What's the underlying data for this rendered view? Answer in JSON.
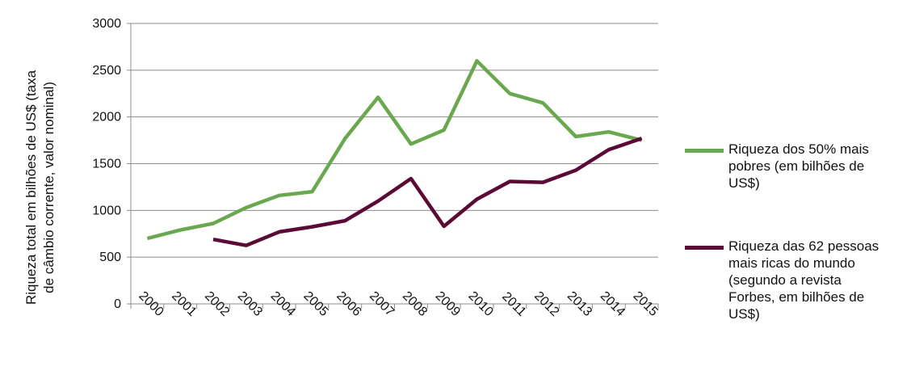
{
  "chart_data": {
    "type": "line",
    "title": "",
    "xlabel": "",
    "ylabel_lines": [
      "Riqueza total em bilhões de US$ (taxa",
      "de câmbio corrente, valor nominal)"
    ],
    "ylim": [
      0,
      3000
    ],
    "yticks": [
      0,
      500,
      1000,
      1500,
      2000,
      2500,
      3000
    ],
    "categories": [
      "2000",
      "2001",
      "2002",
      "2003",
      "2004",
      "2005",
      "2006",
      "2007",
      "2008",
      "2009",
      "2010",
      "2011",
      "2012",
      "2013",
      "2014",
      "2015"
    ],
    "grid": true,
    "legend_position": "right",
    "series": [
      {
        "name_lines": [
          "Riqueza dos 50% mais",
          "pobres (em bilhões de",
          "US$)"
        ],
        "color": "#6aa84f",
        "values": [
          700,
          790,
          860,
          1030,
          1160,
          1200,
          1770,
          2210,
          1710,
          1860,
          2600,
          2250,
          2150,
          1790,
          1840,
          1750
        ]
      },
      {
        "name_lines": [
          "Riqueza das 62 pessoas",
          "mais ricas do mundo",
          "(segundo a revista",
          "Forbes, em bilhões de",
          "US$)"
        ],
        "color": "#5b0a36",
        "values": [
          null,
          null,
          690,
          625,
          770,
          825,
          890,
          1100,
          1340,
          830,
          1120,
          1310,
          1300,
          1430,
          1650,
          1770
        ]
      }
    ]
  }
}
